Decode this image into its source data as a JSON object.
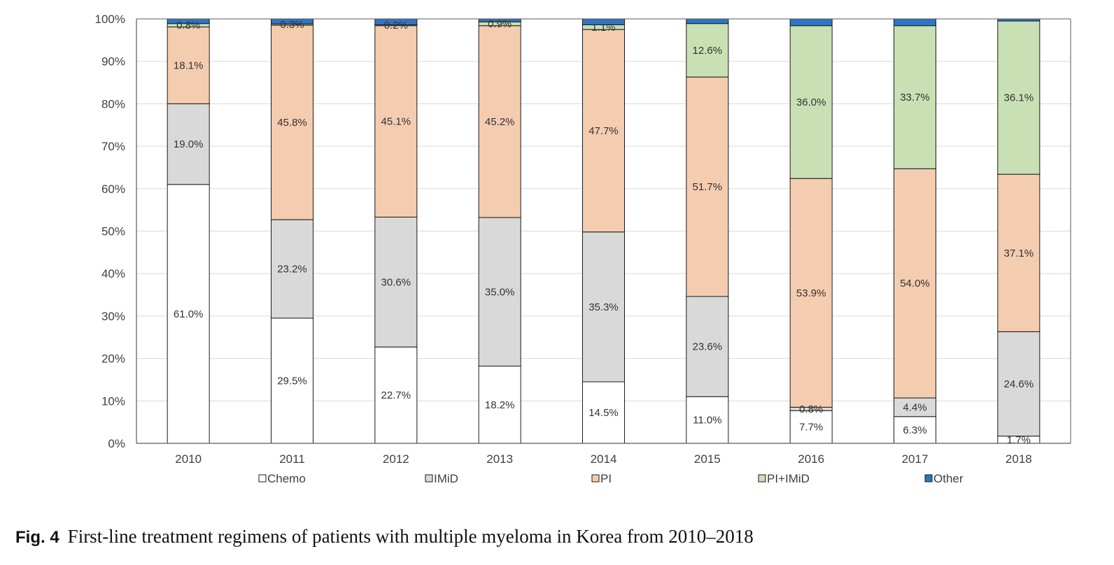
{
  "chart_data": {
    "type": "bar",
    "stacked": true,
    "categories": [
      "2010",
      "2011",
      "2012",
      "2013",
      "2014",
      "2015",
      "2016",
      "2017",
      "2018"
    ],
    "series": [
      {
        "name": "Chemo",
        "color": "#ffffff",
        "values": [
          61.0,
          29.5,
          22.7,
          18.2,
          14.5,
          11.0,
          7.7,
          6.3,
          1.7
        ],
        "labels": [
          "61.0%",
          "29.5%",
          "22.7%",
          "18.2%",
          "14.5%",
          "11.0%",
          "7.7%",
          "6.3%",
          "1.7%"
        ]
      },
      {
        "name": "IMiD",
        "color": "#d9d9d9",
        "values": [
          19.0,
          23.2,
          30.6,
          35.0,
          35.3,
          23.6,
          0.8,
          4.4,
          24.6
        ],
        "labels": [
          "19.0%",
          "23.2%",
          "30.6%",
          "35.0%",
          "35.3%",
          "23.6%",
          "0.8%",
          "4.4%",
          "24.6%"
        ]
      },
      {
        "name": "PI",
        "color": "#f4ccb0",
        "values": [
          18.1,
          45.8,
          45.1,
          45.2,
          47.7,
          51.7,
          53.9,
          54.0,
          37.1
        ],
        "labels": [
          "18.1%",
          "45.8%",
          "45.1%",
          "45.2%",
          "47.7%",
          "51.7%",
          "53.9%",
          "54.0%",
          "37.1%"
        ]
      },
      {
        "name": "PI+IMiD",
        "color": "#c8e0b4",
        "values": [
          0.8,
          0.3,
          0.2,
          0.9,
          1.1,
          12.6,
          36.0,
          33.7,
          36.1
        ],
        "labels": [
          "0.8%",
          "0.3%",
          "0.2%",
          "0.9%",
          "1.1%",
          "12.6%",
          "36.0%",
          "33.7%",
          "36.1%"
        ]
      },
      {
        "name": "Other",
        "color": "#2e75c4",
        "values": [
          1.1,
          1.2,
          1.4,
          0.7,
          1.4,
          1.1,
          1.6,
          1.6,
          0.5
        ],
        "labels": [
          "",
          "",
          "",
          "",
          "",
          "",
          "",
          "",
          ""
        ]
      }
    ],
    "yticks": [
      "0%",
      "10%",
      "20%",
      "30%",
      "40%",
      "50%",
      "60%",
      "70%",
      "80%",
      "90%",
      "100%"
    ],
    "ylim": [
      0,
      100
    ],
    "xlabel": "",
    "ylabel": "",
    "title": "",
    "grid": true,
    "legend_position": "bottom"
  },
  "caption": {
    "fig_label": "Fig. 4",
    "text": "First-line treatment regimens of patients with multiple myeloma in Korea from 2010–2018"
  }
}
